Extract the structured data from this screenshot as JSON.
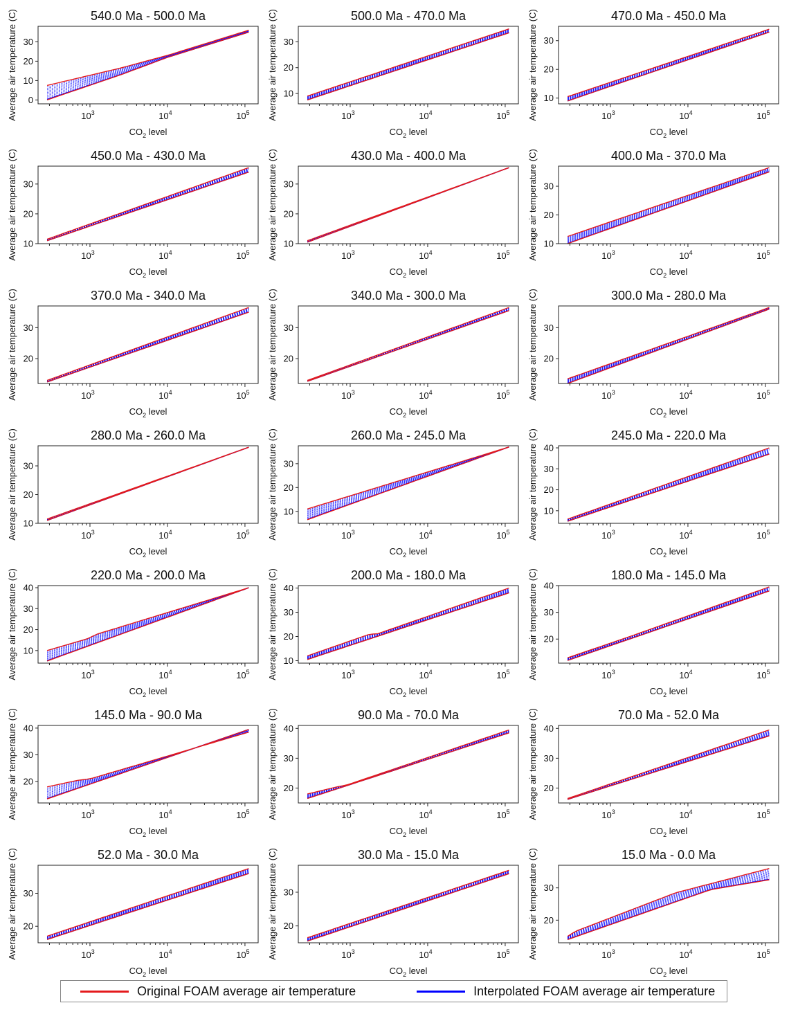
{
  "legend": {
    "original": {
      "label": "Original FOAM average air temperature",
      "color": "#e41a1c"
    },
    "interpolated": {
      "label": "Interpolated FOAM average air temperature",
      "color": "#0000ff"
    }
  },
  "chart_data": [
    {
      "type": "line",
      "title": "540.0 Ma - 500.0 Ma",
      "xlabel": "CO2 level",
      "ylabel": "Average air temperature (C)",
      "xscale": "log",
      "xlim": [
        214,
        148000
      ],
      "xticks": [
        3,
        4,
        5
      ],
      "ylim": [
        -2,
        38
      ],
      "yticks": [
        0,
        10,
        20,
        30
      ],
      "start": [
        [
          280,
          7.5
        ],
        [
          2500,
          16.5
        ],
        [
          10000,
          23
        ],
        [
          112000,
          36
        ]
      ],
      "end": [
        [
          280,
          0
        ],
        [
          2500,
          13
        ],
        [
          10000,
          22
        ],
        [
          112000,
          35
        ]
      ]
    },
    {
      "type": "line",
      "title": "500.0 Ma - 470.0 Ma",
      "xlabel": "CO2 level",
      "ylabel": "Average air temperature (C)",
      "xscale": "log",
      "xlim": [
        214,
        148000
      ],
      "xticks": [
        3,
        4,
        5
      ],
      "ylim": [
        6,
        36
      ],
      "yticks": [
        10,
        20,
        30
      ],
      "start": [
        [
          280,
          9
        ],
        [
          112000,
          35
        ]
      ],
      "end": [
        [
          280,
          7.5
        ],
        [
          112000,
          33.5
        ]
      ]
    },
    {
      "type": "line",
      "title": "470.0 Ma - 450.0 Ma",
      "xlabel": "CO2 level",
      "ylabel": "Average air temperature (C)",
      "xscale": "log",
      "xlim": [
        214,
        148000
      ],
      "xticks": [
        3,
        4,
        5
      ],
      "ylim": [
        8,
        35
      ],
      "yticks": [
        10,
        20,
        30
      ],
      "start": [
        [
          280,
          10.5
        ],
        [
          112000,
          34
        ]
      ],
      "end": [
        [
          280,
          9
        ],
        [
          112000,
          33
        ]
      ]
    },
    {
      "type": "line",
      "title": "450.0 Ma - 430.0 Ma",
      "xlabel": "CO2 level",
      "ylabel": "Average air temperature (C)",
      "xscale": "log",
      "xlim": [
        214,
        148000
      ],
      "xticks": [
        3,
        4,
        5
      ],
      "ylim": [
        10,
        36
      ],
      "yticks": [
        10,
        20,
        30
      ],
      "start": [
        [
          280,
          11.5
        ],
        [
          112000,
          35.5
        ]
      ],
      "end": [
        [
          280,
          11
        ],
        [
          112000,
          34
        ]
      ]
    },
    {
      "type": "line",
      "title": "430.0 Ma - 400.0 Ma",
      "xlabel": "CO2 level",
      "ylabel": "Average air temperature (C)",
      "xscale": "log",
      "xlim": [
        214,
        148000
      ],
      "xticks": [
        3,
        4,
        5
      ],
      "ylim": [
        10,
        36
      ],
      "yticks": [
        10,
        20,
        30
      ],
      "start": [
        [
          280,
          11
        ],
        [
          112000,
          35.5
        ]
      ],
      "end": [
        [
          280,
          10.5
        ],
        [
          112000,
          35.5
        ]
      ]
    },
    {
      "type": "line",
      "title": "400.0 Ma - 370.0 Ma",
      "xlabel": "CO2 level",
      "ylabel": "Average air temperature (C)",
      "xscale": "log",
      "xlim": [
        214,
        148000
      ],
      "xticks": [
        3,
        4,
        5
      ],
      "ylim": [
        10,
        37
      ],
      "yticks": [
        10,
        20,
        30
      ],
      "start": [
        [
          280,
          12.5
        ],
        [
          112000,
          36.5
        ]
      ],
      "end": [
        [
          280,
          10
        ],
        [
          112000,
          35
        ]
      ]
    },
    {
      "type": "line",
      "title": "370.0 Ma - 340.0 Ma",
      "xlabel": "CO2 level",
      "ylabel": "Average air temperature (C)",
      "xscale": "log",
      "xlim": [
        214,
        148000
      ],
      "xticks": [
        3,
        4,
        5
      ],
      "ylim": [
        12,
        37
      ],
      "yticks": [
        20,
        30
      ],
      "start": [
        [
          280,
          13
        ],
        [
          112000,
          36.5
        ]
      ],
      "end": [
        [
          280,
          12.5
        ],
        [
          112000,
          35
        ]
      ]
    },
    {
      "type": "line",
      "title": "340.0 Ma - 300.0 Ma",
      "xlabel": "CO2 level",
      "ylabel": "Average air temperature (C)",
      "xscale": "log",
      "xlim": [
        214,
        148000
      ],
      "xticks": [
        3,
        4,
        5
      ],
      "ylim": [
        12,
        37
      ],
      "yticks": [
        20,
        30
      ],
      "start": [
        [
          280,
          13
        ],
        [
          112000,
          36.5
        ]
      ],
      "end": [
        [
          280,
          12.7
        ],
        [
          112000,
          35.5
        ]
      ]
    },
    {
      "type": "line",
      "title": "300.0 Ma - 280.0 Ma",
      "xlabel": "CO2 level",
      "ylabel": "Average air temperature (C)",
      "xscale": "log",
      "xlim": [
        214,
        148000
      ],
      "xticks": [
        3,
        4,
        5
      ],
      "ylim": [
        12,
        37
      ],
      "yticks": [
        20,
        30
      ],
      "start": [
        [
          280,
          13.5
        ],
        [
          112000,
          36.5
        ]
      ],
      "end": [
        [
          280,
          12
        ],
        [
          112000,
          36
        ]
      ]
    },
    {
      "type": "line",
      "title": "280.0 Ma - 260.0 Ma",
      "xlabel": "CO2 level",
      "ylabel": "Average air temperature (C)",
      "xscale": "log",
      "xlim": [
        214,
        148000
      ],
      "xticks": [
        3,
        4,
        5
      ],
      "ylim": [
        10,
        37
      ],
      "yticks": [
        10,
        20,
        30
      ],
      "start": [
        [
          280,
          11.5
        ],
        [
          112000,
          36.5
        ]
      ],
      "end": [
        [
          280,
          11
        ],
        [
          112000,
          36.5
        ]
      ]
    },
    {
      "type": "line",
      "title": "260.0 Ma - 245.0 Ma",
      "xlabel": "CO2 level",
      "ylabel": "Average air temperature (C)",
      "xscale": "log",
      "xlim": [
        214,
        148000
      ],
      "xticks": [
        3,
        4,
        5
      ],
      "ylim": [
        5,
        37.5
      ],
      "yticks": [
        10,
        20,
        30
      ],
      "start": [
        [
          280,
          11
        ],
        [
          112000,
          37
        ]
      ],
      "end": [
        [
          280,
          6.5
        ],
        [
          112000,
          37
        ]
      ]
    },
    {
      "type": "line",
      "title": "245.0 Ma - 220.0 Ma",
      "xlabel": "CO2 level",
      "ylabel": "Average air temperature (C)",
      "xscale": "log",
      "xlim": [
        214,
        148000
      ],
      "xticks": [
        3,
        4,
        5
      ],
      "ylim": [
        4,
        41
      ],
      "yticks": [
        10,
        20,
        30,
        40
      ],
      "start": [
        [
          280,
          6
        ],
        [
          112000,
          40
        ]
      ],
      "end": [
        [
          280,
          5
        ],
        [
          112000,
          37
        ]
      ]
    },
    {
      "type": "line",
      "title": "220.0 Ma - 200.0 Ma",
      "xlabel": "CO2 level",
      "ylabel": "Average air temperature (C)",
      "xscale": "log",
      "xlim": [
        214,
        148000
      ],
      "xticks": [
        3,
        4,
        5
      ],
      "ylim": [
        4,
        41
      ],
      "yticks": [
        10,
        20,
        30,
        40
      ],
      "start": [
        [
          280,
          10
        ],
        [
          1000,
          16
        ],
        [
          1150,
          17.5
        ],
        [
          112000,
          40
        ]
      ],
      "end": [
        [
          280,
          5
        ],
        [
          112000,
          40
        ]
      ]
    },
    {
      "type": "line",
      "title": "200.0 Ma - 180.0 Ma",
      "xlabel": "CO2 level",
      "ylabel": "Average air temperature (C)",
      "xscale": "log",
      "xlim": [
        214,
        148000
      ],
      "xticks": [
        3,
        4,
        5
      ],
      "ylim": [
        9,
        41
      ],
      "yticks": [
        10,
        20,
        30,
        40
      ],
      "start": [
        [
          280,
          12
        ],
        [
          1800,
          21
        ],
        [
          2200,
          21
        ],
        [
          112000,
          40
        ]
      ],
      "end": [
        [
          280,
          10.5
        ],
        [
          112000,
          38
        ]
      ]
    },
    {
      "type": "line",
      "title": "180.0 Ma - 145.0 Ma",
      "xlabel": "CO2 level",
      "ylabel": "Average air temperature (C)",
      "xscale": "log",
      "xlim": [
        214,
        148000
      ],
      "xticks": [
        3,
        4,
        5
      ],
      "ylim": [
        11,
        40
      ],
      "yticks": [
        20,
        30,
        40
      ],
      "start": [
        [
          280,
          13
        ],
        [
          1800,
          21
        ],
        [
          112000,
          39.5
        ]
      ],
      "end": [
        [
          280,
          12
        ],
        [
          112000,
          38
        ]
      ]
    },
    {
      "type": "line",
      "title": "145.0 Ma - 90.0 Ma",
      "xlabel": "CO2 level",
      "ylabel": "Average air temperature (C)",
      "xscale": "log",
      "xlim": [
        214,
        148000
      ],
      "xticks": [
        3,
        4,
        5
      ],
      "ylim": [
        12,
        41
      ],
      "yticks": [
        20,
        30,
        40
      ],
      "start": [
        [
          280,
          18
        ],
        [
          700,
          20.5
        ],
        [
          1000,
          21
        ],
        [
          112000,
          38.5
        ]
      ],
      "end": [
        [
          280,
          13.5
        ],
        [
          112000,
          39.5
        ]
      ]
    },
    {
      "type": "line",
      "title": "90.0 Ma - 70.0 Ma",
      "xlabel": "CO2 level",
      "ylabel": "Average air temperature (C)",
      "xscale": "log",
      "xlim": [
        214,
        148000
      ],
      "xticks": [
        3,
        4,
        5
      ],
      "ylim": [
        15,
        41
      ],
      "yticks": [
        20,
        30,
        40
      ],
      "start": [
        [
          280,
          18
        ],
        [
          700,
          20.5
        ],
        [
          900,
          21
        ],
        [
          112000,
          39.5
        ]
      ],
      "end": [
        [
          280,
          16.5
        ],
        [
          112000,
          38.5
        ]
      ]
    },
    {
      "type": "line",
      "title": "70.0 Ma - 52.0 Ma",
      "xlabel": "CO2 level",
      "ylabel": "Average air temperature (C)",
      "xscale": "log",
      "xlim": [
        214,
        148000
      ],
      "xticks": [
        3,
        4,
        5
      ],
      "ylim": [
        15,
        41
      ],
      "yticks": [
        20,
        30,
        40
      ],
      "start": [
        [
          280,
          16.5
        ],
        [
          112000,
          39.5
        ]
      ],
      "end": [
        [
          280,
          16.2
        ],
        [
          112000,
          37.5
        ]
      ]
    },
    {
      "type": "line",
      "title": "52.0 Ma - 30.0 Ma",
      "xlabel": "CO2 level",
      "ylabel": "Average air temperature (C)",
      "xscale": "log",
      "xlim": [
        214,
        148000
      ],
      "xticks": [
        3,
        4,
        5
      ],
      "ylim": [
        15,
        38.5
      ],
      "yticks": [
        20,
        30
      ],
      "start": [
        [
          280,
          17
        ],
        [
          112000,
          37.5
        ]
      ],
      "end": [
        [
          280,
          16
        ],
        [
          112000,
          36
        ]
      ]
    },
    {
      "type": "line",
      "title": "30.0 Ma - 15.0 Ma",
      "xlabel": "CO2 level",
      "ylabel": "Average air temperature (C)",
      "xscale": "log",
      "xlim": [
        214,
        148000
      ],
      "xticks": [
        3,
        4,
        5
      ],
      "ylim": [
        15,
        38
      ],
      "yticks": [
        20,
        30
      ],
      "start": [
        [
          280,
          16.5
        ],
        [
          112000,
          36.5
        ]
      ],
      "end": [
        [
          280,
          15.5
        ],
        [
          112000,
          35.5
        ]
      ]
    },
    {
      "type": "line",
      "title": "15.0 Ma - 0.0 Ma",
      "xlabel": "CO2 level",
      "ylabel": "Average air temperature (C)",
      "xscale": "log",
      "xlim": [
        214,
        148000
      ],
      "xticks": [
        3,
        4,
        5
      ],
      "ylim": [
        13,
        37
      ],
      "yticks": [
        20,
        30
      ],
      "start": [
        [
          280,
          15
        ],
        [
          350,
          16.5
        ],
        [
          7000,
          28.5
        ],
        [
          112000,
          36
        ]
      ],
      "end": [
        [
          280,
          14
        ],
        [
          20000,
          29.5
        ],
        [
          112000,
          32.5
        ]
      ]
    }
  ]
}
